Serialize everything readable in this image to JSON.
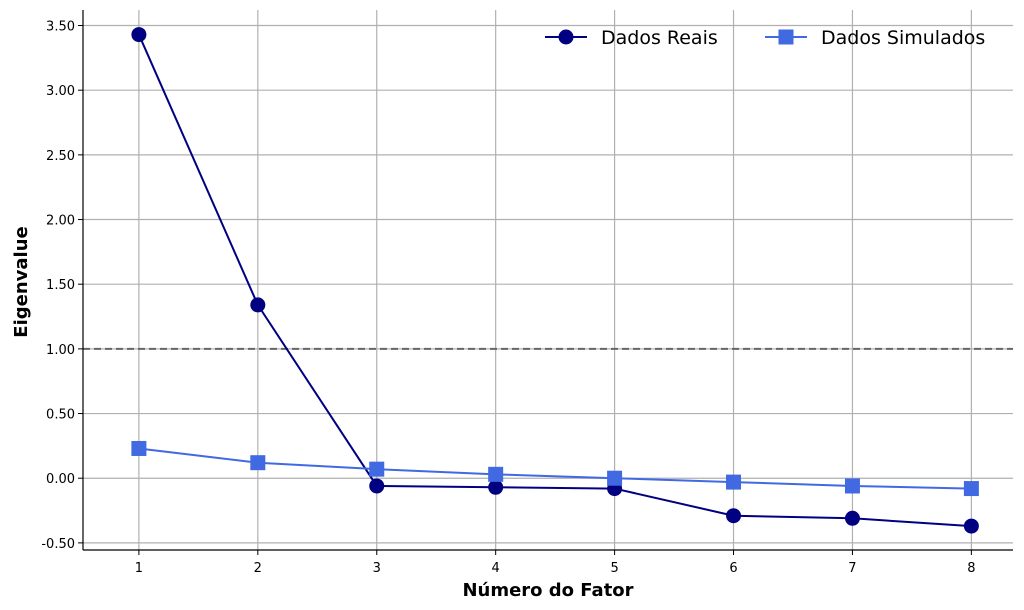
{
  "chart_data": {
    "type": "line",
    "xlabel": "Número do Fator",
    "ylabel": "Eigenvalue",
    "x": [
      1,
      2,
      3,
      4,
      5,
      6,
      7,
      8
    ],
    "xticks": [
      "1",
      "2",
      "3",
      "4",
      "5",
      "6",
      "7",
      "8"
    ],
    "xlim": [
      0.53,
      8.35
    ],
    "ylim": [
      -0.555,
      3.62
    ],
    "yticks": [
      -0.5,
      0.0,
      0.5,
      1.0,
      1.5,
      2.0,
      2.5,
      3.0,
      3.5
    ],
    "ytick_labels": [
      "-0.50",
      "0.00",
      "0.50",
      "1.00",
      "1.50",
      "2.00",
      "2.50",
      "3.00",
      "3.50"
    ],
    "grid": true,
    "reference_line": {
      "y": 1.0,
      "style": "dashed",
      "color": "#666666"
    },
    "legend_position": "top-right",
    "series": [
      {
        "name": "Dados Reais",
        "values": [
          3.43,
          1.34,
          -0.06,
          -0.07,
          -0.08,
          -0.29,
          -0.31,
          -0.37
        ],
        "color": "#000080",
        "marker": "circle"
      },
      {
        "name": "Dados Simulados",
        "values": [
          0.23,
          0.12,
          0.07,
          0.03,
          0.0,
          -0.03,
          -0.06,
          -0.08
        ],
        "color": "#4169E1",
        "marker": "square"
      }
    ]
  }
}
